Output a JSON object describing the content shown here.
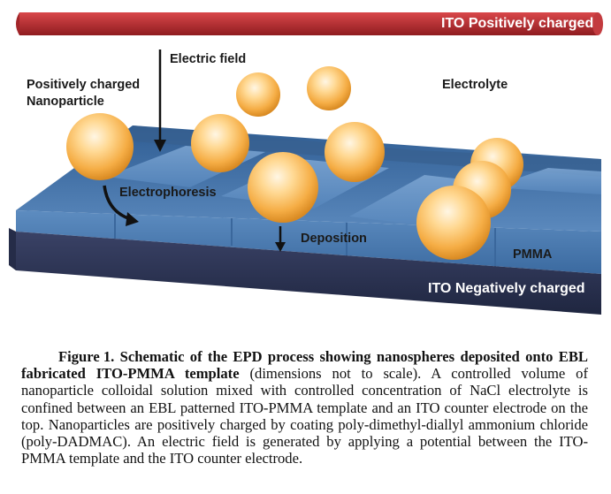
{
  "figure": {
    "top_electrode_label": "ITO Positively charged",
    "bottom_electrode_label": "ITO Negatively charged",
    "electric_field_label": "Electric field",
    "particle_label_line1": "Positively charged",
    "particle_label_line2": "Nanoparticle",
    "electrolyte_label": "Electrolyte",
    "electrophoresis_label": "Electrophoresis",
    "deposition_label": "Deposition",
    "pmma_label": "PMMA",
    "colors": {
      "top_electrode": "#b8272b",
      "bottom_electrode": "#2c3350",
      "pmma": "#4a78ad",
      "nanoparticle": "#f6b54f"
    }
  },
  "caption": {
    "figure_number": "Figure 1.",
    "bold_text": "Schematic of the EPD process showing nanospheres deposited onto EBL fabricated ITO-PMMA template",
    "body_text": " (dimensions not to scale). A controlled volume of nanoparticle colloidal solution mixed with controlled concentration of NaCl electrolyte is confined between an EBL patterned ITO-PMMA template and an ITO counter electrode on the top. Nanoparticles are positively charged by coating poly-dimethyl-diallyl ammonium chloride (poly-DADMAC). An electric field is generated by applying a potential between the ITO-PMMA template and the ITO counter electrode."
  }
}
